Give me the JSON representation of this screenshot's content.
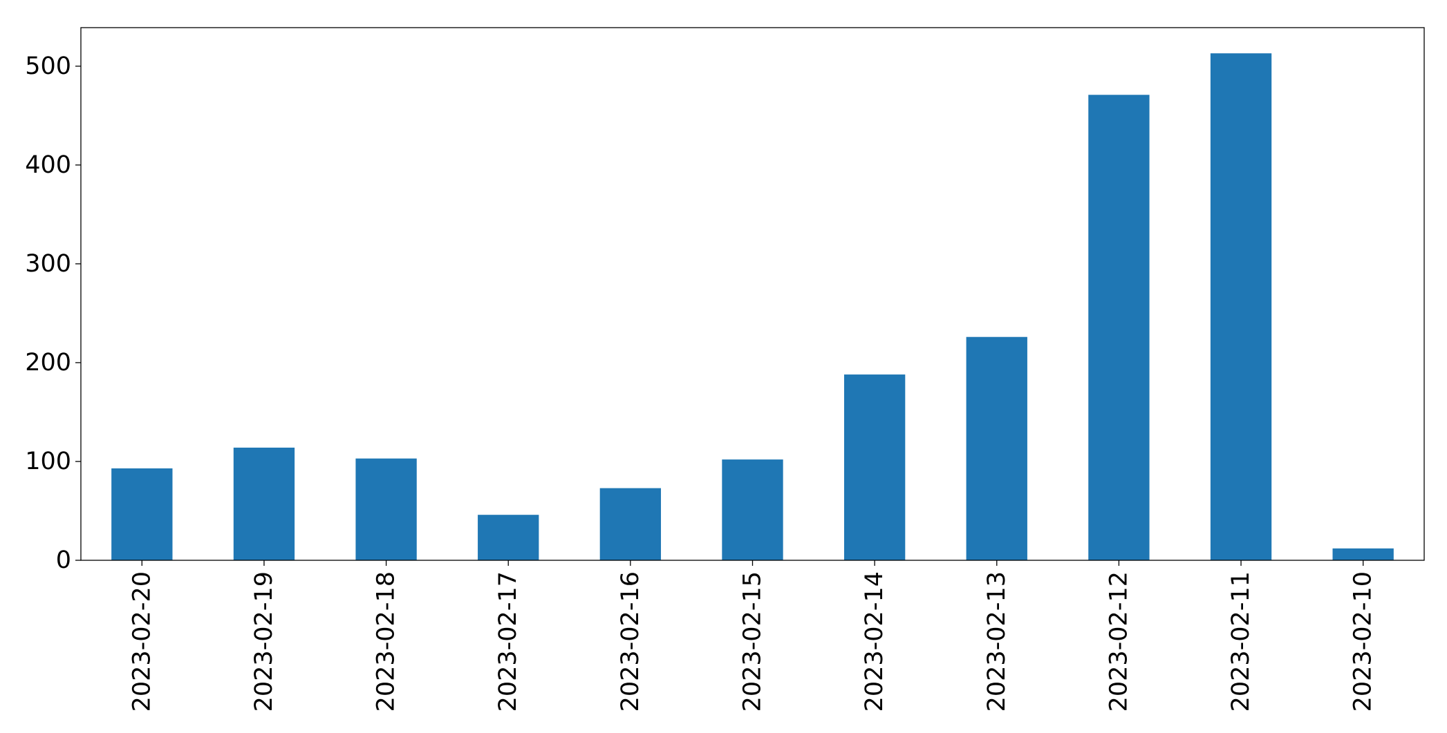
{
  "chart_data": {
    "type": "bar",
    "categories": [
      "2023-02-20",
      "2023-02-19",
      "2023-02-18",
      "2023-02-17",
      "2023-02-16",
      "2023-02-15",
      "2023-02-14",
      "2023-02-13",
      "2023-02-12",
      "2023-02-11",
      "2023-02-10"
    ],
    "values": [
      93,
      114,
      103,
      46,
      73,
      102,
      188,
      226,
      471,
      513,
      12
    ],
    "title": "",
    "xlabel": "",
    "ylabel": "",
    "ylim": [
      0,
      539
    ],
    "yticks": [
      0,
      100,
      200,
      300,
      400,
      500
    ],
    "grid": false,
    "legend": "none",
    "bar_color": "#1f77b4"
  }
}
